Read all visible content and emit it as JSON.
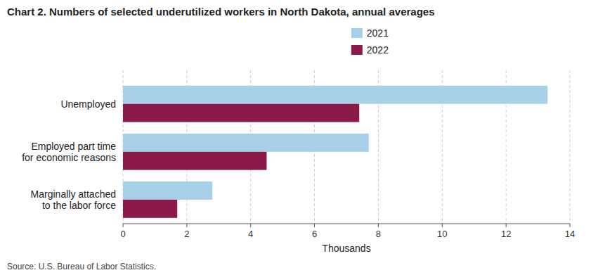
{
  "chart_data": {
    "type": "bar",
    "orientation": "horizontal",
    "title": "Chart 2. Numbers of selected underutilized workers in North Dakota, annual averages",
    "categories": [
      "Unemployed",
      "Employed part time\nfor economic reasons",
      "Marginally attached\nto the labor force"
    ],
    "series": [
      {
        "name": "2021",
        "color": "#a8d0e8",
        "values": [
          13.3,
          7.7,
          2.8
        ]
      },
      {
        "name": "2022",
        "color": "#8b1a4a",
        "values": [
          7.4,
          4.5,
          1.7
        ]
      }
    ],
    "xlabel": "Thousands",
    "xlim": [
      0,
      14
    ],
    "xticks": [
      0,
      2,
      4,
      6,
      8,
      10,
      12,
      14
    ],
    "grid": true,
    "legend": "top",
    "source": "Source: U.S. Bureau of Labor Statistics."
  }
}
